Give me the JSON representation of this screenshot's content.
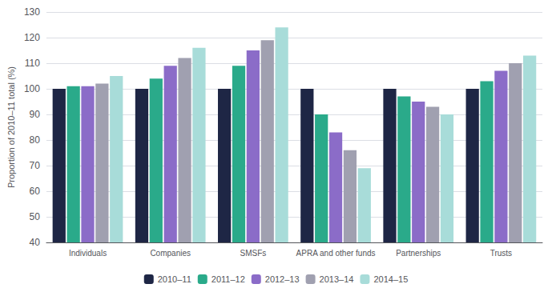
{
  "chart_data": {
    "type": "bar",
    "categories": [
      "Individuals",
      "Companies",
      "SMSFs",
      "APRA and other funds",
      "Partnerships",
      "Trusts"
    ],
    "series": [
      {
        "name": "2010–11",
        "color": "#1e2645",
        "values": [
          100,
          100,
          100,
          100,
          100,
          100
        ]
      },
      {
        "name": "2011–12",
        "color": "#2aaa8a",
        "values": [
          101,
          104,
          109,
          90,
          97,
          103
        ]
      },
      {
        "name": "2012–13",
        "color": "#8b6cc8",
        "values": [
          101,
          109,
          115,
          83,
          95,
          107
        ]
      },
      {
        "name": "2013–14",
        "color": "#a0a0b0",
        "values": [
          102,
          112,
          119,
          76,
          93,
          110
        ]
      },
      {
        "name": "2014–15",
        "color": "#a8dcd9",
        "values": [
          105,
          116,
          124,
          69,
          90,
          113
        ]
      }
    ],
    "ylabel": "Proportion of 2010–11 total (%)",
    "ylim": [
      40,
      130
    ],
    "yticks": [
      40,
      50,
      60,
      70,
      80,
      90,
      100,
      110,
      120,
      130
    ],
    "grid": true,
    "legend": "bottom"
  }
}
